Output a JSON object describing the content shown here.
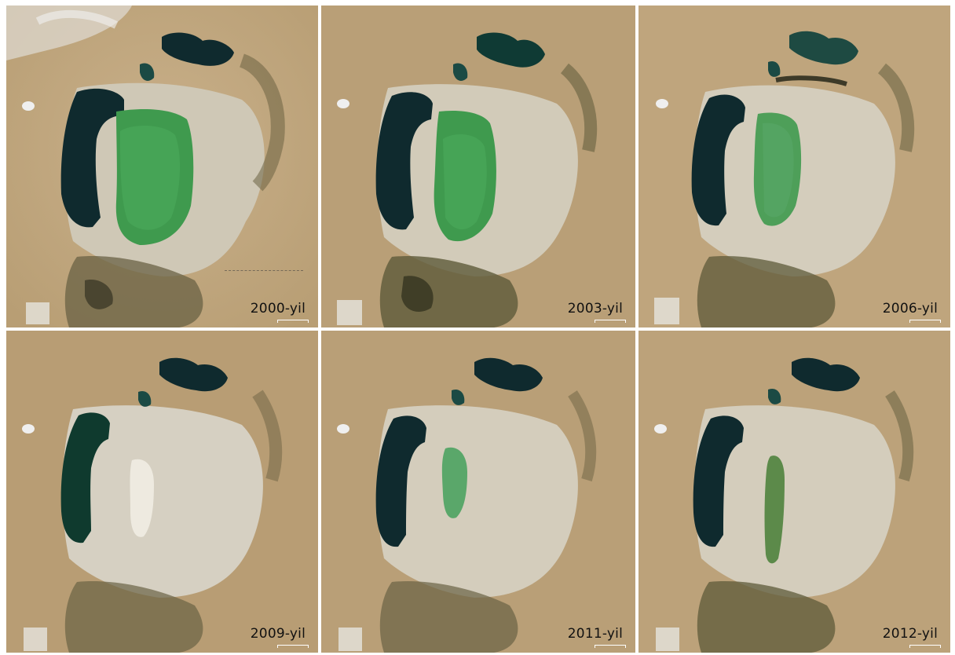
{
  "panels": [
    {
      "year_label": "2000-yil",
      "green_basin": "large",
      "scene": "2000"
    },
    {
      "year_label": "2003-yil",
      "green_basin": "large",
      "scene": "2003"
    },
    {
      "year_label": "2006-yil",
      "green_basin": "medium",
      "scene": "2006"
    },
    {
      "year_label": "2009-yil",
      "green_basin": "none",
      "scene": "2009"
    },
    {
      "year_label": "2011-yil",
      "green_basin": "small",
      "scene": "2011"
    },
    {
      "year_label": "2012-yil",
      "green_basin": "thin",
      "scene": "2012"
    }
  ],
  "colors": {
    "desert": "#c1a880",
    "dry_seabed": "#cfc8b6",
    "deep_water": "#0f2a2e",
    "green_water": "#3f9a4e",
    "vegetation": "#5e5a3a"
  }
}
